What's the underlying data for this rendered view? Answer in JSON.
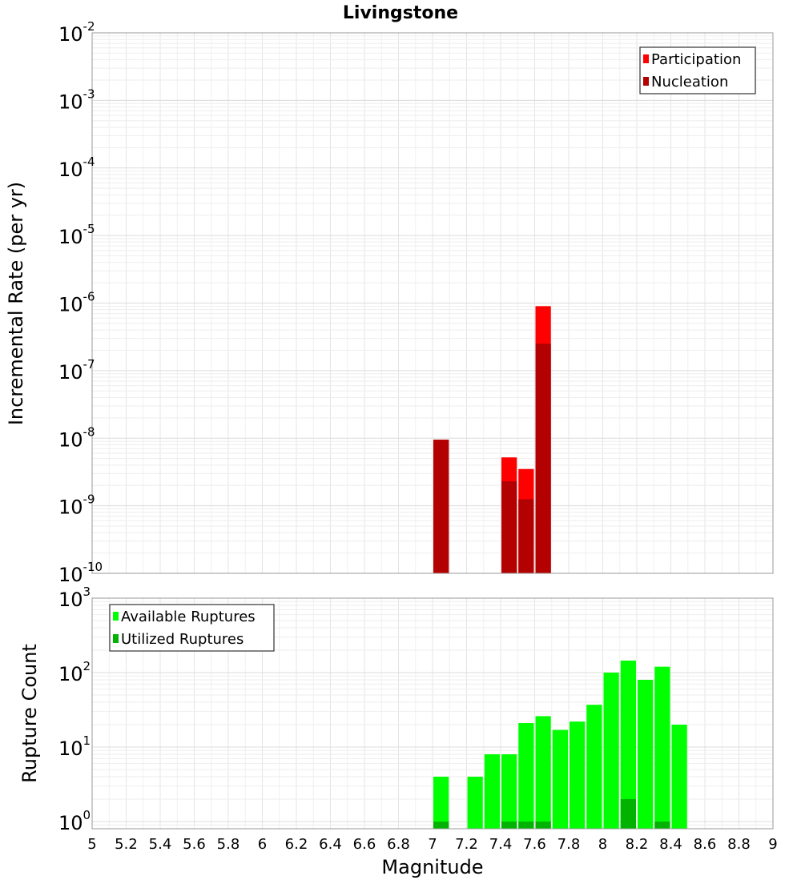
{
  "title": "Livingstone",
  "xlabel": "Magnitude",
  "x_ticks": [
    5,
    5.2,
    5.4,
    5.6,
    5.8,
    6,
    6.2,
    6.4,
    6.6,
    6.8,
    7,
    7.2,
    7.4,
    7.6,
    7.8,
    8,
    8.2,
    8.4,
    8.6,
    8.8,
    9
  ],
  "colors": {
    "participation": "#ff0000",
    "nucleation": "#b30000",
    "available": "#00ff00",
    "utilized": "#00b300"
  },
  "chart_data": [
    {
      "type": "bar",
      "ylabel": "Incremental Rate (per yr)",
      "xlim": [
        5,
        9
      ],
      "ylim": [
        1e-10,
        0.01
      ],
      "y_scale": "log",
      "y_tick_exponents": [
        -10,
        -9,
        -8,
        -7,
        -6,
        -5,
        -4,
        -3,
        -2
      ],
      "legend_position": "top-right",
      "bin_width": 0.1,
      "grid": true,
      "series": [
        {
          "name": "Participation",
          "x": [
            7.05,
            7.45,
            7.55,
            7.65
          ],
          "values": [
            9.5e-09,
            5.2e-09,
            3.5e-09,
            9e-07
          ]
        },
        {
          "name": "Nucleation",
          "x": [
            7.05,
            7.45,
            7.55,
            7.65
          ],
          "values": [
            9.5e-09,
            2.3e-09,
            1.25e-09,
            2.5e-07
          ]
        }
      ]
    },
    {
      "type": "bar",
      "ylabel": "Rupture Count",
      "xlim": [
        5,
        9
      ],
      "ylim": [
        0.8,
        1000
      ],
      "y_scale": "log",
      "y_tick_exponents": [
        0,
        1,
        2,
        3
      ],
      "legend_position": "top-left",
      "bin_width": 0.1,
      "grid": true,
      "series": [
        {
          "name": "Available Ruptures",
          "x": [
            7.05,
            7.25,
            7.35,
            7.45,
            7.55,
            7.65,
            7.75,
            7.85,
            7.95,
            8.05,
            8.15,
            8.25,
            8.35,
            8.45
          ],
          "values": [
            4,
            4,
            8,
            8,
            21,
            26,
            17,
            22,
            37,
            100,
            145,
            80,
            120,
            20
          ]
        },
        {
          "name": "Utilized Ruptures",
          "x": [
            7.05,
            7.45,
            7.55,
            7.65,
            8.15,
            8.35
          ],
          "values": [
            1,
            1,
            1,
            1,
            2,
            1
          ]
        }
      ]
    }
  ]
}
